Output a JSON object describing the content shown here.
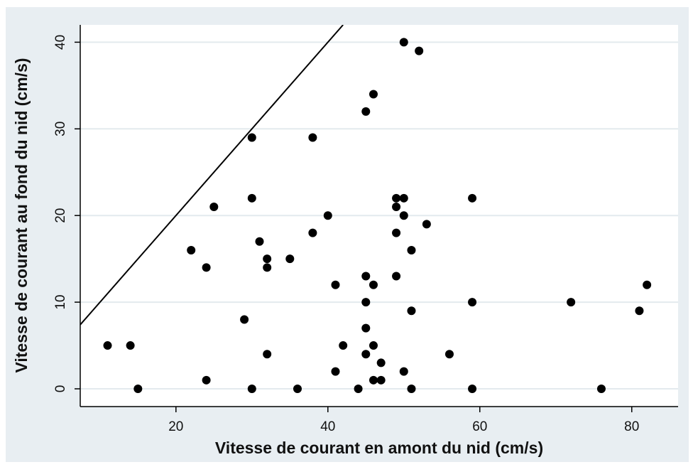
{
  "chart_data": {
    "type": "scatter",
    "x_label": "Vitesse de courant en amont du nid (cm/s)",
    "y_label": "Vitesse de courant au fond du nid (cm/s)",
    "x": [
      11,
      14,
      15,
      22,
      24,
      24,
      25,
      29,
      30,
      30,
      30,
      31,
      32,
      32,
      32,
      35,
      36,
      38,
      38,
      40,
      41,
      41,
      42,
      44,
      45,
      45,
      45,
      45,
      45,
      46,
      46,
      46,
      46,
      47,
      47,
      49,
      49,
      49,
      49,
      50,
      50,
      50,
      50,
      51,
      51,
      51,
      52,
      53,
      56,
      59,
      59,
      59,
      72,
      76,
      81,
      82
    ],
    "values": [
      5,
      5,
      0,
      16,
      14,
      1,
      21,
      8,
      29,
      22,
      0,
      17,
      15,
      14,
      4,
      15,
      0,
      29,
      18,
      20,
      12,
      2,
      5,
      0,
      32,
      13,
      10,
      7,
      4,
      34,
      12,
      5,
      1,
      3,
      1,
      22,
      21,
      18,
      13,
      40,
      22,
      20,
      2,
      16,
      9,
      0,
      39,
      19,
      4,
      22,
      10,
      0,
      10,
      0,
      9,
      12
    ],
    "color": "#000000",
    "line": {
      "x": [
        7.4,
        42
      ],
      "y": [
        7.4,
        42
      ],
      "color": "#000000"
    },
    "xlim": [
      7.4,
      86.1
    ],
    "ylim": [
      -2.05,
      42
    ],
    "xticks": [
      20,
      40,
      60,
      80
    ],
    "yticks": [
      0,
      10,
      20,
      30,
      40
    ],
    "grid": true
  }
}
